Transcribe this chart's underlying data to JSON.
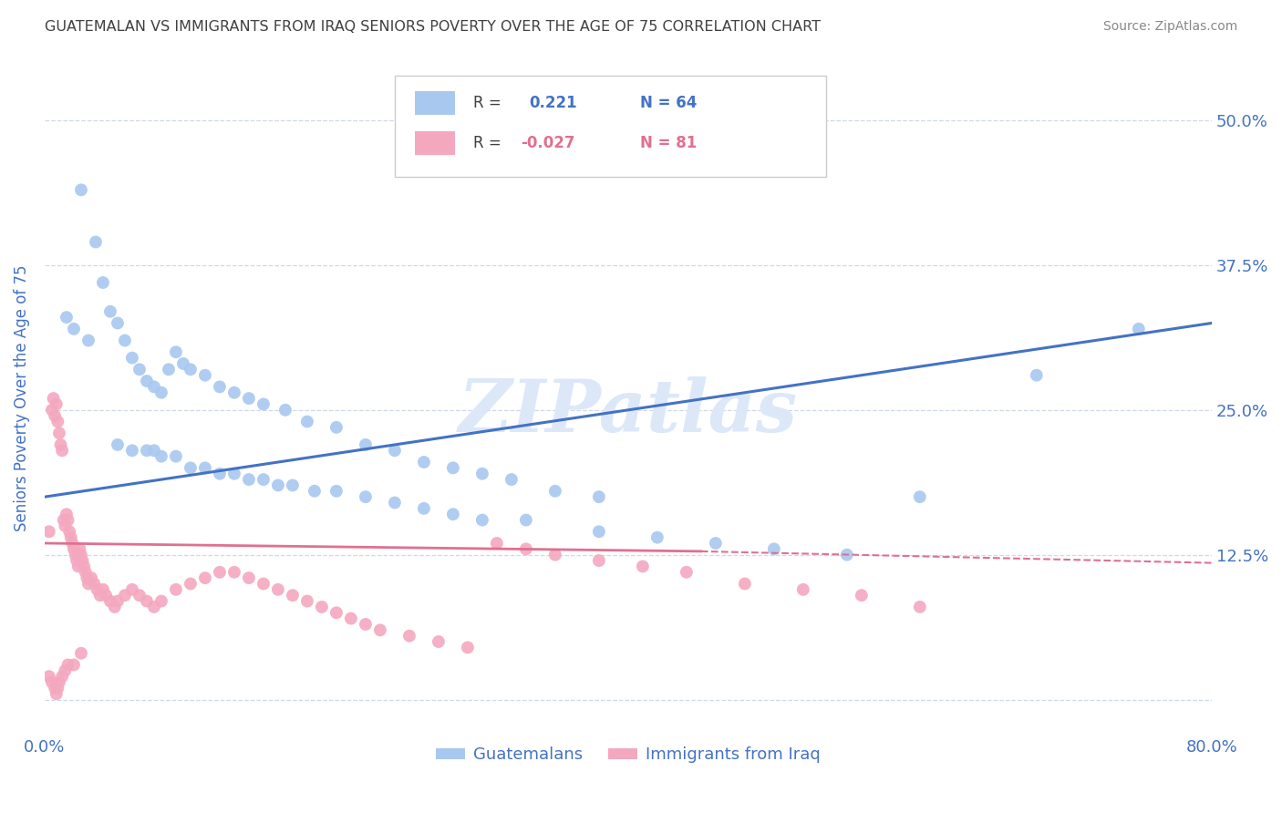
{
  "title": "GUATEMALAN VS IMMIGRANTS FROM IRAQ SENIORS POVERTY OVER THE AGE OF 75 CORRELATION CHART",
  "source": "Source: ZipAtlas.com",
  "ylabel": "Seniors Poverty Over the Age of 75",
  "xlim": [
    0.0,
    0.8
  ],
  "ylim": [
    -0.03,
    0.55
  ],
  "ytick_positions": [
    0.0,
    0.125,
    0.25,
    0.375,
    0.5
  ],
  "yticklabels": [
    "",
    "12.5%",
    "25.0%",
    "37.5%",
    "50.0%"
  ],
  "R_blue": 0.221,
  "N_blue": 64,
  "R_pink": -0.027,
  "N_pink": 81,
  "blue_color": "#a8c8f0",
  "pink_color": "#f4a8c0",
  "blue_line_color": "#4472c4",
  "pink_line_color": "#e07090",
  "watermark": "ZIPatlas",
  "watermark_color": "#dce8f8",
  "grid_color": "#d0d8e8",
  "blue_scatter_x": [
    0.025,
    0.035,
    0.015,
    0.02,
    0.03,
    0.04,
    0.045,
    0.05,
    0.055,
    0.06,
    0.065,
    0.07,
    0.075,
    0.08,
    0.085,
    0.09,
    0.095,
    0.1,
    0.11,
    0.12,
    0.13,
    0.14,
    0.15,
    0.165,
    0.18,
    0.2,
    0.22,
    0.24,
    0.26,
    0.28,
    0.3,
    0.32,
    0.35,
    0.38,
    0.05,
    0.06,
    0.07,
    0.075,
    0.08,
    0.09,
    0.1,
    0.11,
    0.12,
    0.13,
    0.14,
    0.15,
    0.16,
    0.17,
    0.185,
    0.2,
    0.22,
    0.24,
    0.26,
    0.28,
    0.3,
    0.33,
    0.38,
    0.42,
    0.46,
    0.5,
    0.55,
    0.6,
    0.68,
    0.75
  ],
  "blue_scatter_y": [
    0.44,
    0.395,
    0.33,
    0.32,
    0.31,
    0.36,
    0.335,
    0.325,
    0.31,
    0.295,
    0.285,
    0.275,
    0.27,
    0.265,
    0.285,
    0.3,
    0.29,
    0.285,
    0.28,
    0.27,
    0.265,
    0.26,
    0.255,
    0.25,
    0.24,
    0.235,
    0.22,
    0.215,
    0.205,
    0.2,
    0.195,
    0.19,
    0.18,
    0.175,
    0.22,
    0.215,
    0.215,
    0.215,
    0.21,
    0.21,
    0.2,
    0.2,
    0.195,
    0.195,
    0.19,
    0.19,
    0.185,
    0.185,
    0.18,
    0.18,
    0.175,
    0.17,
    0.165,
    0.16,
    0.155,
    0.155,
    0.145,
    0.14,
    0.135,
    0.13,
    0.125,
    0.175,
    0.28,
    0.32
  ],
  "pink_scatter_x": [
    0.003,
    0.005,
    0.006,
    0.007,
    0.008,
    0.009,
    0.01,
    0.011,
    0.012,
    0.013,
    0.014,
    0.015,
    0.016,
    0.017,
    0.018,
    0.019,
    0.02,
    0.021,
    0.022,
    0.023,
    0.024,
    0.025,
    0.026,
    0.027,
    0.028,
    0.029,
    0.03,
    0.032,
    0.034,
    0.036,
    0.038,
    0.04,
    0.042,
    0.045,
    0.048,
    0.05,
    0.055,
    0.06,
    0.065,
    0.07,
    0.075,
    0.08,
    0.09,
    0.1,
    0.11,
    0.12,
    0.13,
    0.14,
    0.15,
    0.16,
    0.17,
    0.18,
    0.19,
    0.2,
    0.21,
    0.22,
    0.23,
    0.25,
    0.27,
    0.29,
    0.31,
    0.33,
    0.35,
    0.38,
    0.41,
    0.44,
    0.48,
    0.52,
    0.56,
    0.6,
    0.003,
    0.005,
    0.007,
    0.008,
    0.009,
    0.01,
    0.012,
    0.014,
    0.016,
    0.02,
    0.025
  ],
  "pink_scatter_y": [
    0.145,
    0.25,
    0.26,
    0.245,
    0.255,
    0.24,
    0.23,
    0.22,
    0.215,
    0.155,
    0.15,
    0.16,
    0.155,
    0.145,
    0.14,
    0.135,
    0.13,
    0.125,
    0.12,
    0.115,
    0.13,
    0.125,
    0.12,
    0.115,
    0.11,
    0.105,
    0.1,
    0.105,
    0.1,
    0.095,
    0.09,
    0.095,
    0.09,
    0.085,
    0.08,
    0.085,
    0.09,
    0.095,
    0.09,
    0.085,
    0.08,
    0.085,
    0.095,
    0.1,
    0.105,
    0.11,
    0.11,
    0.105,
    0.1,
    0.095,
    0.09,
    0.085,
    0.08,
    0.075,
    0.07,
    0.065,
    0.06,
    0.055,
    0.05,
    0.045,
    0.135,
    0.13,
    0.125,
    0.12,
    0.115,
    0.11,
    0.1,
    0.095,
    0.09,
    0.08,
    0.02,
    0.015,
    0.01,
    0.005,
    0.01,
    0.015,
    0.02,
    0.025,
    0.03,
    0.03,
    0.04
  ],
  "blue_line": [
    [
      0.0,
      0.8
    ],
    [
      0.175,
      0.325
    ]
  ],
  "pink_line_solid": [
    [
      0.0,
      0.45
    ],
    [
      0.135,
      0.128
    ]
  ],
  "pink_line_dashed": [
    [
      0.45,
      0.8
    ],
    [
      0.128,
      0.118
    ]
  ],
  "fig_bg": "#ffffff",
  "plot_bg": "#ffffff",
  "title_color": "#404040",
  "tick_label_color": "#4472c4",
  "legend_label1": "Guatemalans",
  "legend_label2": "Immigrants from Iraq"
}
